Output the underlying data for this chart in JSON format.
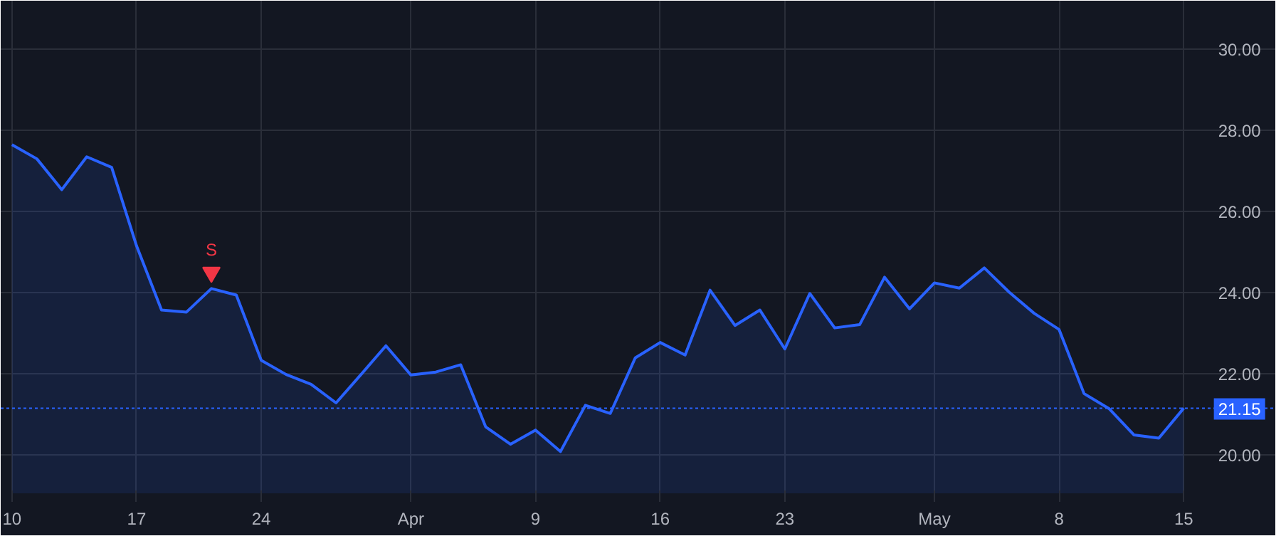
{
  "chart_data": {
    "type": "area",
    "categories": [
      "10",
      null,
      null,
      null,
      null,
      "17",
      null,
      null,
      null,
      null,
      "24",
      null,
      null,
      null,
      null,
      null,
      "Apr",
      null,
      null,
      null,
      null,
      "9",
      null,
      null,
      null,
      null,
      "16",
      null,
      null,
      null,
      null,
      "23",
      null,
      null,
      null,
      null,
      null,
      "May",
      null,
      null,
      null,
      null,
      "8",
      null,
      null,
      null,
      null,
      "15"
    ],
    "series": [
      {
        "color": "#2962ff",
        "values": [
          27.65,
          27.3,
          26.54,
          27.35,
          27.09,
          25.15,
          23.57,
          23.52,
          24.1,
          23.94,
          22.33,
          21.98,
          21.74,
          21.28,
          21.98,
          22.69,
          21.97,
          22.04,
          22.22,
          20.69,
          20.26,
          20.61,
          20.08,
          21.22,
          21.02,
          22.39,
          22.77,
          22.46,
          24.06,
          23.19,
          23.57,
          22.61,
          23.98,
          23.13,
          23.21,
          24.38,
          23.6,
          24.24,
          24.11,
          24.61,
          24.01,
          23.49,
          23.09,
          21.51,
          21.14,
          20.49,
          20.41,
          21.15
        ]
      },
      {
        "type": "scatter",
        "marker": "triangle",
        "color": "#f23645",
        "values": [
          null,
          null,
          null,
          null,
          null,
          null,
          null,
          null,
          24.5,
          null,
          null,
          null,
          null,
          null,
          null,
          null,
          null,
          null,
          null,
          null,
          null,
          null,
          null,
          null,
          null,
          null,
          null,
          null,
          null,
          null,
          null,
          null,
          null,
          null,
          null,
          null,
          null,
          null,
          null,
          null,
          null,
          null,
          null,
          null,
          null,
          null,
          null,
          null
        ]
      }
    ],
    "ylim": [
      19.05,
      31.2
    ],
    "yticks": [
      {
        "value": 20,
        "label": "20.00"
      },
      {
        "value": 22,
        "label": "22.00"
      },
      {
        "value": 24,
        "label": "24.00"
      },
      {
        "value": 26,
        "label": "26.00"
      },
      {
        "value": 28,
        "label": "28.00"
      },
      {
        "value": 30,
        "label": "30.00"
      }
    ],
    "ref_lines": [
      {
        "axis": "y",
        "value": 21.15,
        "label": "21.15",
        "color": "#2962ff",
        "line_style": "dotted"
      }
    ],
    "annotations": [
      "S"
    ],
    "grid": true
  }
}
